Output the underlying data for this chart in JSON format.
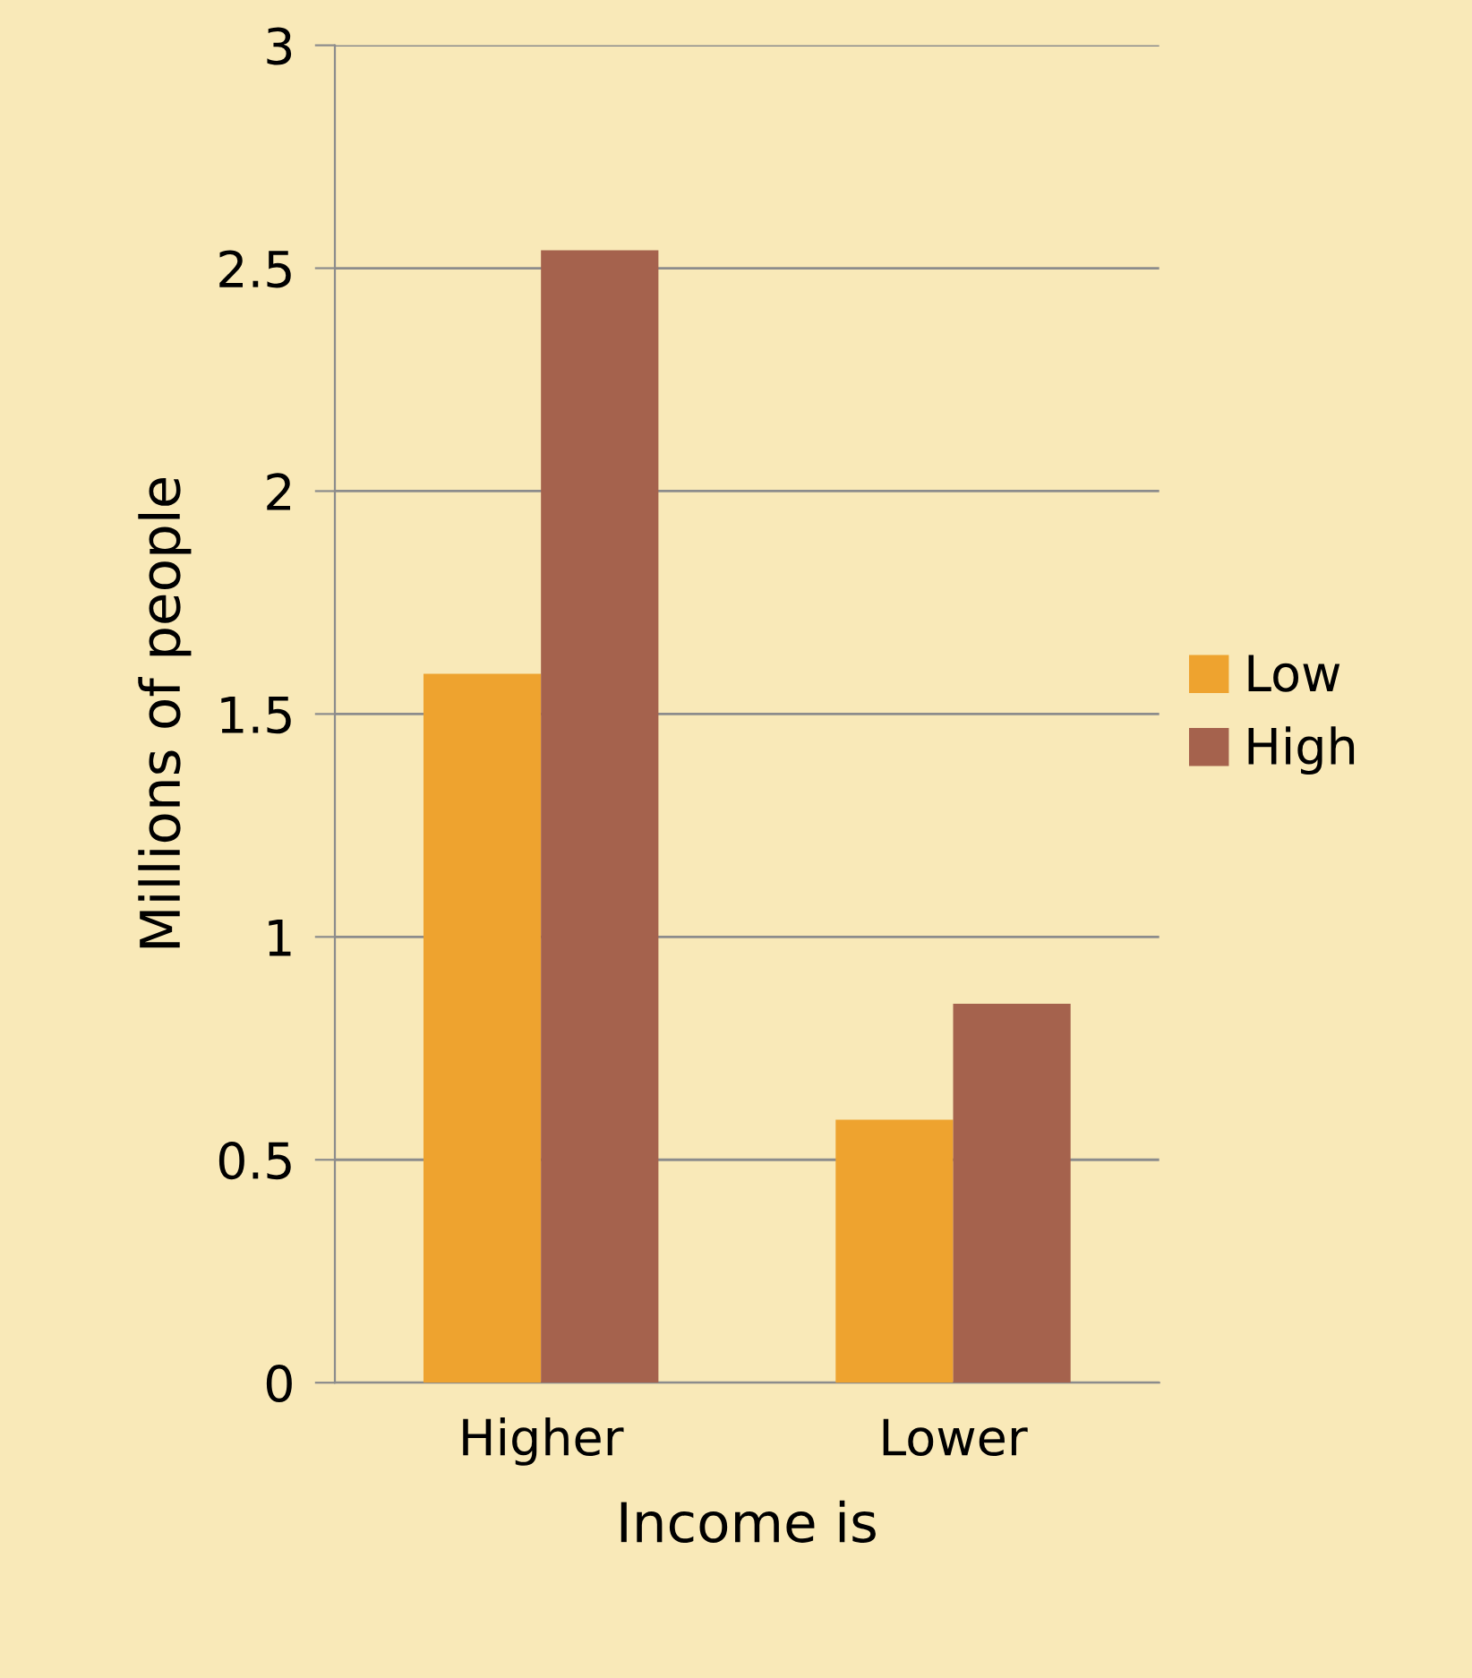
{
  "chart_data": {
    "type": "bar",
    "xlabel": "Income is",
    "ylabel": "Millions of people",
    "categories": [
      "Higher",
      "Lower"
    ],
    "series": [
      {
        "name": "Low",
        "color": "#eea32f",
        "values": [
          1.59,
          0.59
        ]
      },
      {
        "name": "High",
        "color": "#a5624d",
        "values": [
          2.54,
          0.85
        ]
      }
    ],
    "ylim": [
      0,
      3
    ],
    "yticks": [
      0,
      0.5,
      1,
      1.5,
      2,
      2.5,
      3
    ],
    "grid": "y",
    "legend": "right"
  }
}
